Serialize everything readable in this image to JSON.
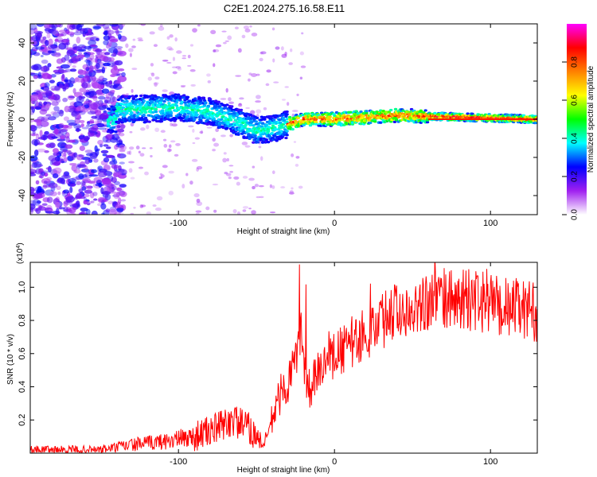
{
  "title": "C2E1.2024.275.16.58.E11",
  "chart_data": [
    {
      "type": "heatmap",
      "xlabel": "Height of straight line (km)",
      "ylabel": "Frequency (Hz)",
      "xlim": [
        -195,
        130
      ],
      "ylim": [
        -50,
        50
      ],
      "xticks": [
        -100,
        0,
        100
      ],
      "yticks": [
        -40,
        -20,
        0,
        20,
        40
      ],
      "colorbar": {
        "label": "Normalized spectral amplitude",
        "range": [
          0,
          1
        ],
        "ticks": [
          "0.0",
          "0.2",
          "0.4",
          "0.6",
          "0.8"
        ],
        "colors": [
          "#ffffff",
          "#a020f0",
          "#0000ff",
          "#00ffff",
          "#00ff00",
          "#ffff00",
          "#ff8000",
          "#ff0000",
          "#ff00ff"
        ]
      },
      "ridge": {
        "description_values": [
          {
            "x": -140,
            "y": 5
          },
          {
            "x": -100,
            "y": 6
          },
          {
            "x": -80,
            "y": 4
          },
          {
            "x": -60,
            "y": -2
          },
          {
            "x": -50,
            "y": -6
          },
          {
            "x": -35,
            "y": -4
          },
          {
            "x": -20,
            "y": 0
          },
          {
            "x": 0,
            "y": 0
          },
          {
            "x": 40,
            "y": 2
          },
          {
            "x": 130,
            "y": 0
          }
        ]
      }
    },
    {
      "type": "line",
      "xlabel": "Height of straight line (km)",
      "ylabel": "SNR (10 * v/v)",
      "yscale_label": "(x10",
      "yscale_exp": "4",
      "xlim": [
        -195,
        130
      ],
      "ylim": [
        0,
        1.15
      ],
      "xticks": [
        -100,
        0,
        100
      ],
      "yticks": [
        "0.2",
        "0.4",
        "0.6",
        "0.8",
        "1.0"
      ],
      "series": [
        {
          "color": "#ff0000",
          "x": [
            -195,
            -150,
            -130,
            -110,
            -90,
            -75,
            -65,
            -55,
            -45,
            -35,
            -28,
            -22,
            -18,
            -12,
            -5,
            0,
            10,
            20,
            30,
            40,
            50,
            60,
            80,
            100,
            120,
            130
          ],
          "y": [
            0.02,
            0.02,
            0.05,
            0.07,
            0.1,
            0.15,
            0.2,
            0.15,
            0.05,
            0.35,
            0.45,
            0.75,
            0.35,
            0.45,
            0.55,
            0.58,
            0.66,
            0.72,
            0.8,
            0.86,
            0.9,
            0.92,
            0.93,
            0.9,
            0.87,
            0.85
          ]
        }
      ]
    }
  ]
}
